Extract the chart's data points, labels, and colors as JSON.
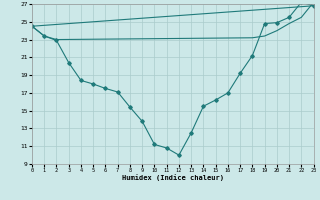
{
  "xlabel": "Humidex (Indice chaleur)",
  "bg_color": "#cce8e8",
  "grid_color": "#aacccc",
  "line_color": "#1f7a7a",
  "ylim": [
    9,
    27
  ],
  "xlim": [
    0,
    23
  ],
  "yticks": [
    9,
    11,
    13,
    15,
    17,
    19,
    21,
    23,
    25,
    27
  ],
  "xticks": [
    0,
    1,
    2,
    3,
    4,
    5,
    6,
    7,
    8,
    9,
    10,
    11,
    12,
    13,
    14,
    15,
    16,
    17,
    18,
    19,
    20,
    21,
    22,
    23
  ],
  "curve1_x": [
    0,
    1,
    2,
    3,
    4,
    5,
    6,
    7,
    8,
    9,
    10,
    11,
    12,
    13,
    14,
    15,
    16,
    17,
    18,
    19,
    20,
    21,
    22,
    23
  ],
  "curve1_y": [
    24.5,
    23.4,
    22.9,
    20.4,
    18.4,
    18.0,
    17.5,
    17.1,
    15.4,
    13.8,
    11.2,
    10.8,
    10.0,
    12.5,
    15.5,
    16.2,
    17.0,
    19.2,
    21.2,
    24.8,
    24.9,
    25.5,
    27.2,
    26.8
  ],
  "curve2_x": [
    0,
    1,
    2,
    18,
    19,
    20,
    21,
    22,
    23
  ],
  "curve2_y": [
    24.5,
    23.4,
    23.0,
    23.2,
    23.4,
    24.0,
    24.8,
    25.5,
    27.2
  ],
  "curve3_x": [
    0,
    23
  ],
  "curve3_y": [
    24.5,
    26.8
  ]
}
